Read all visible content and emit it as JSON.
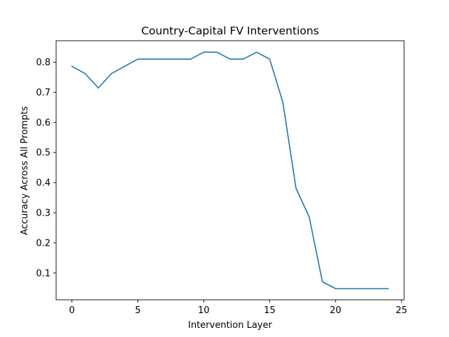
{
  "chart_data": {
    "type": "line",
    "title": "Country-Capital FV Interventions",
    "xlabel": "Intervention Layer",
    "ylabel": "Accuracy Across All Prompts",
    "xlim": [
      -1.2,
      25.2
    ],
    "ylim": [
      0.011,
      0.871
    ],
    "xticks": [
      0,
      5,
      10,
      15,
      20,
      25
    ],
    "xtick_labels": [
      "0",
      "5",
      "10",
      "15",
      "20",
      "25"
    ],
    "yticks": [
      0.1,
      0.2,
      0.3,
      0.4,
      0.5,
      0.6,
      0.7,
      0.8
    ],
    "ytick_labels": [
      "0.1",
      "0.2",
      "0.3",
      "0.4",
      "0.5",
      "0.6",
      "0.7",
      "0.8"
    ],
    "grid": false,
    "legend": "none",
    "series": [
      {
        "color": "#1f77b4",
        "x": [
          0,
          1,
          2,
          3,
          4,
          5,
          6,
          7,
          8,
          9,
          10,
          11,
          12,
          13,
          14,
          15,
          16,
          17,
          18,
          19,
          20,
          21,
          22,
          23,
          24
        ],
        "y": [
          0.786,
          0.762,
          0.714,
          0.762,
          0.786,
          0.81,
          0.81,
          0.81,
          0.81,
          0.81,
          0.833,
          0.833,
          0.81,
          0.81,
          0.833,
          0.81,
          0.667,
          0.381,
          0.286,
          0.071,
          0.048,
          0.048,
          0.048,
          0.048,
          0.048
        ]
      }
    ]
  }
}
